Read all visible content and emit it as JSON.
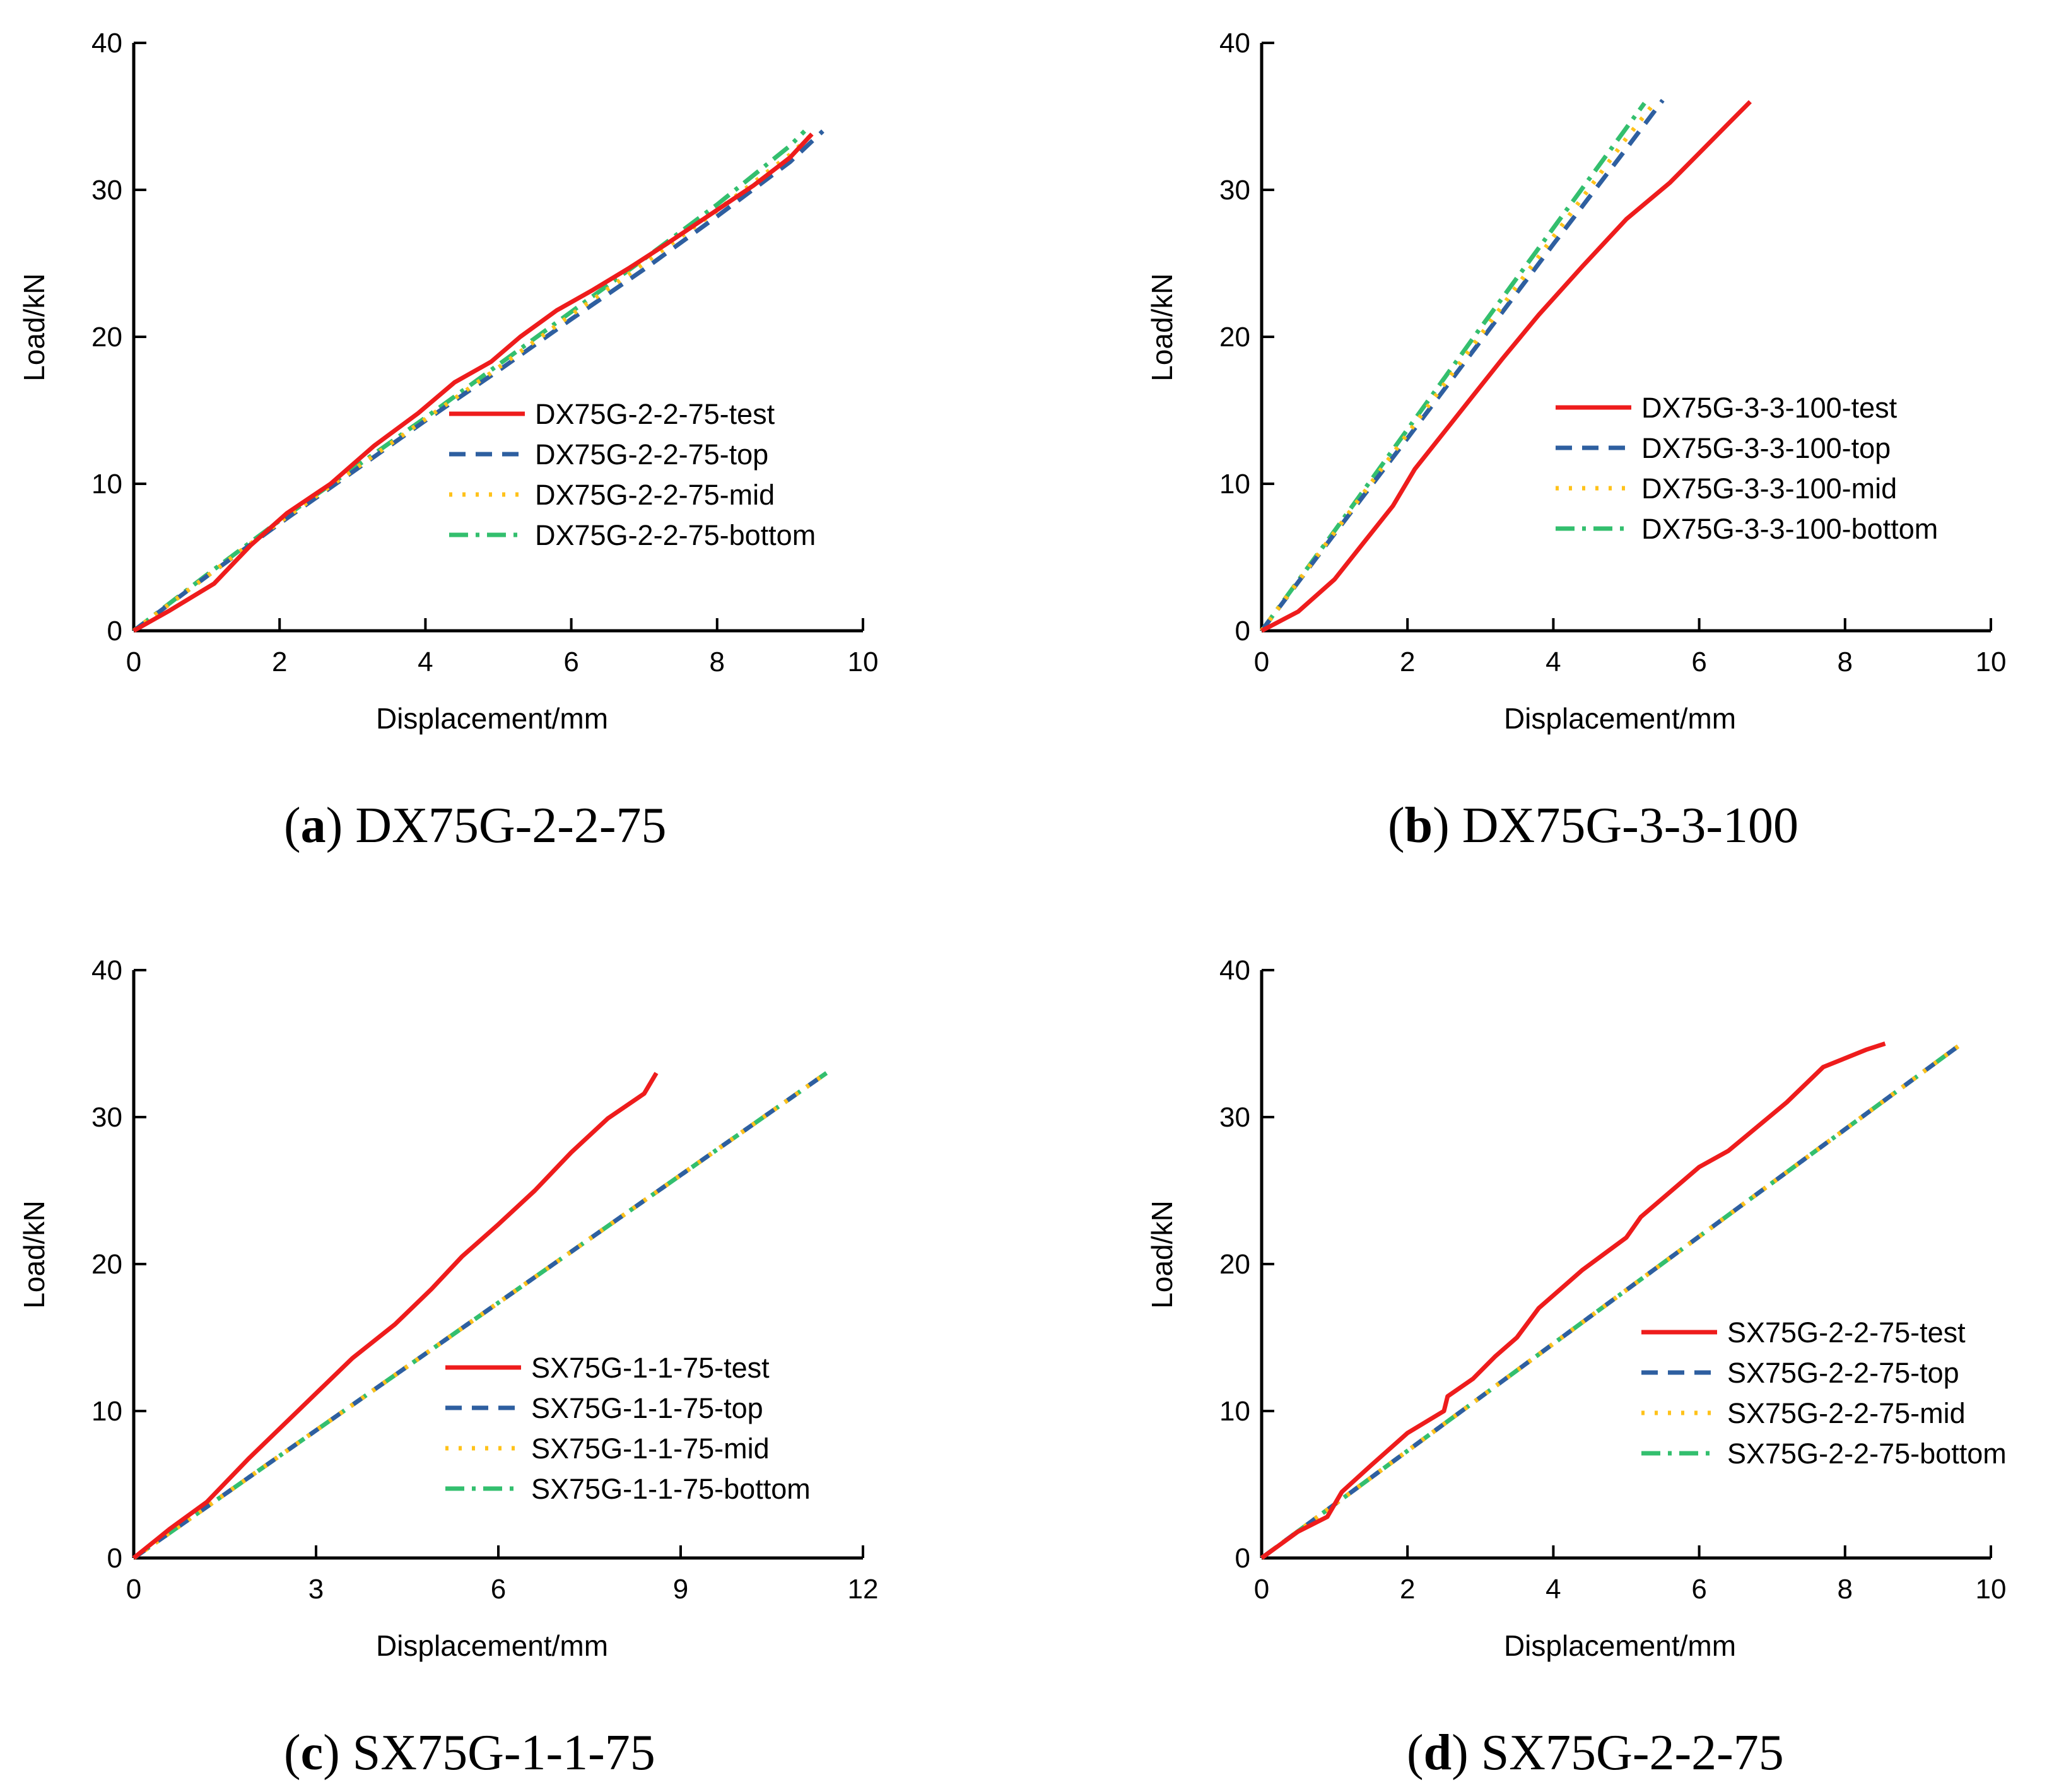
{
  "colors": {
    "test": "#ee1c1c",
    "top": "#2e5fa0",
    "mid": "#ffc21a",
    "bottom": "#33bf6e",
    "axis": "#000000"
  },
  "chart_data": [
    {
      "type": "line",
      "caption_letter": "a",
      "caption_text": "DX75G-2-2-75",
      "xlabel": "Displacement/mm",
      "ylabel": "Load/kN",
      "xlim": [
        0,
        10
      ],
      "ylim": [
        0,
        40
      ],
      "xticks": [
        0,
        2,
        4,
        6,
        8,
        10
      ],
      "yticks": [
        0,
        10,
        20,
        30,
        40
      ],
      "grid": false,
      "legend_position": "center-right",
      "series": [
        {
          "name": "DX75G-2-2-75-test",
          "style": "test",
          "x": [
            0,
            0.5,
            1.1,
            1.6,
            2.1,
            2.7,
            3.3,
            3.9,
            4.4,
            4.9,
            5.3,
            5.8,
            6.3,
            6.8,
            7.3,
            7.9,
            8.5,
            9.0,
            9.3
          ],
          "y": [
            0,
            1.4,
            3.2,
            5.8,
            8.0,
            10.0,
            12.6,
            14.8,
            16.9,
            18.3,
            20.0,
            21.8,
            23.2,
            24.7,
            26.3,
            28.3,
            30.3,
            32.2,
            33.8
          ]
        },
        {
          "name": "DX75G-2-2-75-top",
          "style": "top",
          "x": [
            0,
            1.0,
            2.0,
            3.0,
            4.0,
            5.0,
            6.0,
            7.0,
            8.0,
            9.0,
            9.45
          ],
          "y": [
            0,
            3.7,
            7.3,
            10.8,
            14.3,
            17.7,
            21.2,
            24.6,
            28.2,
            31.9,
            34.0
          ]
        },
        {
          "name": "DX75G-2-2-75-mid",
          "style": "mid",
          "x": [
            0,
            1.0,
            2.0,
            3.0,
            4.0,
            5.0,
            6.0,
            7.0,
            8.0,
            9.0,
            9.35
          ],
          "y": [
            0,
            3.7,
            7.4,
            10.9,
            14.4,
            17.9,
            21.5,
            25.0,
            28.6,
            32.4,
            34.0
          ]
        },
        {
          "name": "DX75G-2-2-75-bottom",
          "style": "bottom",
          "x": [
            0,
            1.0,
            2.0,
            3.0,
            4.0,
            5.0,
            6.0,
            7.0,
            8.0,
            9.0,
            9.2
          ],
          "y": [
            0,
            3.8,
            7.5,
            11.0,
            14.5,
            18.1,
            21.7,
            25.3,
            29.0,
            33.0,
            34.0
          ]
        }
      ]
    },
    {
      "type": "line",
      "caption_letter": "b",
      "caption_text": "DX75G-3-3-100",
      "xlabel": "Displacement/mm",
      "ylabel": "Load/kN",
      "xlim": [
        0,
        10
      ],
      "ylim": [
        0,
        40
      ],
      "xticks": [
        0,
        2,
        4,
        6,
        8,
        10
      ],
      "yticks": [
        0,
        10,
        20,
        30,
        40
      ],
      "grid": false,
      "legend_position": "center-right",
      "series": [
        {
          "name": "DX75G-3-3-100-test",
          "style": "test",
          "x": [
            0,
            0.5,
            1.0,
            1.4,
            1.8,
            2.1,
            2.5,
            2.9,
            3.3,
            3.8,
            4.4,
            5.0,
            5.6,
            6.0,
            6.4,
            6.7
          ],
          "y": [
            0,
            1.3,
            3.5,
            6.0,
            8.5,
            11.0,
            13.5,
            16.0,
            18.5,
            21.5,
            24.8,
            28.0,
            30.5,
            32.5,
            34.5,
            36.0
          ]
        },
        {
          "name": "DX75G-3-3-100-top",
          "style": "top",
          "x": [
            0,
            1.0,
            2.0,
            3.0,
            4.0,
            5.0,
            5.5
          ],
          "y": [
            0,
            6.6,
            13.1,
            19.7,
            26.3,
            32.8,
            36.1
          ]
        },
        {
          "name": "DX75G-3-3-100-mid",
          "style": "mid",
          "x": [
            0,
            1.0,
            2.0,
            3.0,
            4.0,
            5.0,
            5.4
          ],
          "y": [
            0,
            6.7,
            13.4,
            20.1,
            26.8,
            33.5,
            36.0
          ]
        },
        {
          "name": "DX75G-3-3-100-bottom",
          "style": "bottom",
          "x": [
            0,
            1.0,
            2.0,
            3.0,
            4.0,
            5.0,
            5.25
          ],
          "y": [
            0,
            6.8,
            13.7,
            20.6,
            27.4,
            34.2,
            35.9
          ]
        }
      ]
    },
    {
      "type": "line",
      "caption_letter": "c",
      "caption_text": "SX75G-1-1-75",
      "xlabel": "Displacement/mm",
      "ylabel": "Load/kN",
      "xlim": [
        0,
        12
      ],
      "ylim": [
        0,
        40
      ],
      "xticks": [
        0,
        3,
        6,
        9,
        12
      ],
      "yticks": [
        0,
        10,
        20,
        30,
        40
      ],
      "grid": false,
      "legend_position": "center-right",
      "series": [
        {
          "name": "SX75G-1-1-75-test",
          "style": "test",
          "x": [
            0,
            0.6,
            1.2,
            1.9,
            2.7,
            3.6,
            4.3,
            4.9,
            5.4,
            6.0,
            6.6,
            7.2,
            7.8,
            8.4,
            8.6
          ],
          "y": [
            0,
            2.0,
            3.8,
            6.8,
            10.0,
            13.6,
            15.9,
            18.3,
            20.5,
            22.7,
            25.0,
            27.6,
            29.9,
            31.6,
            33.0
          ]
        },
        {
          "name": "SX75G-1-1-75-top",
          "style": "top",
          "x": [
            0,
            11.4
          ],
          "y": [
            0,
            33.0
          ]
        },
        {
          "name": "SX75G-1-1-75-mid",
          "style": "mid",
          "x": [
            0,
            11.4
          ],
          "y": [
            0,
            33.0
          ]
        },
        {
          "name": "SX75G-1-1-75-bottom",
          "style": "bottom",
          "x": [
            0,
            11.4
          ],
          "y": [
            0,
            33.0
          ]
        }
      ]
    },
    {
      "type": "line",
      "caption_letter": "d",
      "caption_text": "SX75G-2-2-75",
      "xlabel": "Displacement/mm",
      "ylabel": "Load/kN",
      "xlim": [
        0,
        10
      ],
      "ylim": [
        0,
        40
      ],
      "xticks": [
        0,
        2,
        4,
        6,
        8,
        10
      ],
      "yticks": [
        0,
        10,
        20,
        30,
        40
      ],
      "grid": false,
      "legend_position": "center-right",
      "series": [
        {
          "name": "SX75G-2-2-75-test",
          "style": "test",
          "x": [
            0,
            0.5,
            0.9,
            1.1,
            1.5,
            2.0,
            2.5,
            2.55,
            2.9,
            3.2,
            3.5,
            3.8,
            4.4,
            5.0,
            5.2,
            6.0,
            6.4,
            7.2,
            7.7,
            8.3,
            8.55
          ],
          "y": [
            0,
            1.8,
            2.8,
            4.5,
            6.3,
            8.5,
            10.0,
            11.0,
            12.2,
            13.7,
            15.0,
            17.0,
            19.6,
            21.8,
            23.2,
            26.6,
            27.7,
            31.0,
            33.4,
            34.6,
            35.0
          ]
        },
        {
          "name": "SX75G-2-2-75-top",
          "style": "top",
          "x": [
            0,
            9.6
          ],
          "y": [
            0,
            35.0
          ]
        },
        {
          "name": "SX75G-2-2-75-mid",
          "style": "mid",
          "x": [
            0,
            9.6
          ],
          "y": [
            0,
            35.0
          ]
        },
        {
          "name": "SX75G-2-2-75-bottom",
          "style": "bottom",
          "x": [
            0,
            9.6
          ],
          "y": [
            0,
            35.0
          ]
        }
      ]
    }
  ]
}
